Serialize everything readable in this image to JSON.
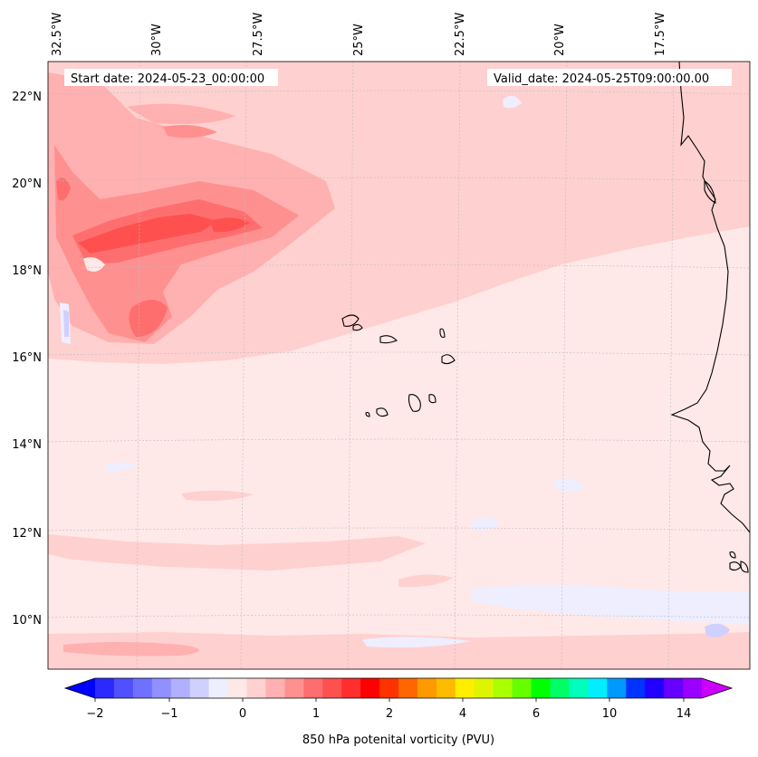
{
  "map": {
    "start_label": "Start date: 2024-05-23_00:00:00",
    "valid_label": "Valid_date: 2024-05-25T09:00:00.00",
    "lon_ticks": [
      {
        "label": "32.5°W",
        "lon": -32.5
      },
      {
        "label": "30°W",
        "lon": -30
      },
      {
        "label": "27.5°W",
        "lon": -27.5
      },
      {
        "label": "25°W",
        "lon": -25
      },
      {
        "label": "22.5°W",
        "lon": -22.5
      },
      {
        "label": "20°W",
        "lon": -20
      },
      {
        "label": "17.5°W",
        "lon": -17.5
      }
    ],
    "lat_ticks": [
      {
        "label": "22°N",
        "lat": 22
      },
      {
        "label": "20°N",
        "lat": 20
      },
      {
        "label": "18°N",
        "lat": 18
      },
      {
        "label": "16°N",
        "lat": 16
      },
      {
        "label": "14°N",
        "lat": 14
      },
      {
        "label": "12°N",
        "lat": 12
      },
      {
        "label": "10°N",
        "lat": 10
      }
    ],
    "extent": {
      "lon_min": -32.8,
      "lon_max": -15.3,
      "lat_min": 8.9,
      "lat_max": 22.7
    }
  },
  "colorbar": {
    "label": "850 hPa potenital vorticity (PVU)",
    "tick_labels": [
      "−2",
      "−1",
      "0",
      "1",
      "2",
      "4",
      "6",
      "10",
      "14"
    ],
    "colors": [
      "#0000ff",
      "#2a2aff",
      "#5050ff",
      "#7070ff",
      "#9090ff",
      "#b0b0ff",
      "#d0d0ff",
      "#eeeeff",
      "#ffe8e8",
      "#ffd0d0",
      "#ffb0b0",
      "#ff9090",
      "#ff6e6e",
      "#ff5050",
      "#ff2e2e",
      "#ff0000",
      "#ff3300",
      "#ff6600",
      "#ff9900",
      "#ffbb00",
      "#ffee00",
      "#ddf500",
      "#aaff00",
      "#66ff00",
      "#00ff00",
      "#00ff66",
      "#00ffbb",
      "#00eeff",
      "#0099ff",
      "#0033ff",
      "#2200ff",
      "#6600ff",
      "#9900ff",
      "#cc00ff"
    ]
  }
}
